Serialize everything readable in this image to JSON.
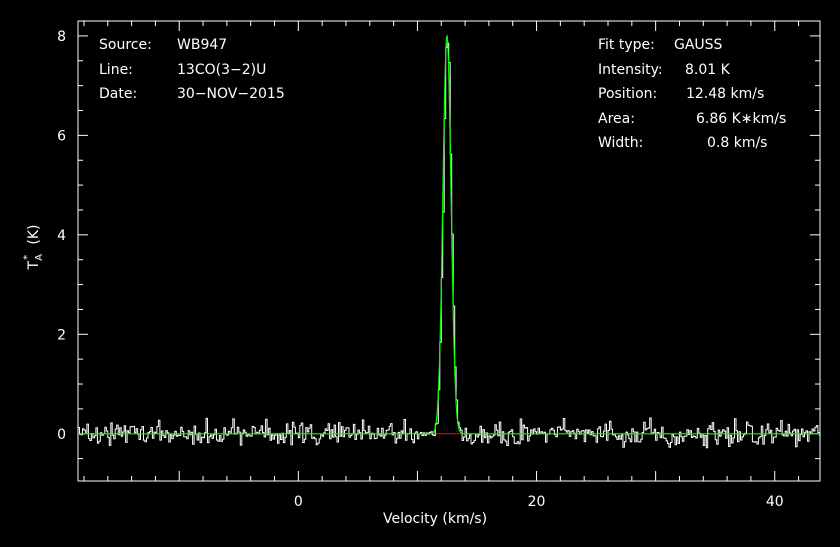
{
  "annotations_left": {
    "source_key": "Source:",
    "source_val": "WB947",
    "line_key": "Line:",
    "line_val": "13CO(3−2)U",
    "date_key": "Date:",
    "date_val": "30−NOV−2015"
  },
  "annotations_right": {
    "fit_key": "Fit type:",
    "fit_val": "GAUSS",
    "intensity_key": "Intensity:",
    "intensity_val": "8.01 K",
    "position_key": "Position:",
    "position_val": "12.48 km/s",
    "area_key": "Area:",
    "area_val": "6.86 K∗km/s",
    "width_key": "Width:",
    "width_val": "0.8 km/s"
  },
  "chart_data": {
    "type": "line",
    "xlabel": "Velocity (km/s)",
    "ylabel": "T",
    "ylabel_sub": "A",
    "ylabel_sup": "*",
    "ylabel_unit": "(K)",
    "xlim": [
      -18.5,
      43.8
    ],
    "ylim": [
      -0.95,
      8.3
    ],
    "xticks": [
      0,
      20,
      40
    ],
    "yticks": [
      0,
      2,
      4,
      6,
      8
    ],
    "spectrum": {
      "x_start": -18.5,
      "x_step": 0.125,
      "noise_amp": 0.18,
      "noise_seed": 947,
      "peak": 8.01,
      "center": 12.48,
      "fwhm": 0.8
    },
    "series": [
      {
        "name": "",
        "role": "data",
        "color": "#ffffff"
      },
      {
        "name": "",
        "role": "gauss fit",
        "color": "#00ff00"
      },
      {
        "name": "",
        "role": "baseline",
        "color": "#ff0000",
        "x": [
          10.5,
          14.5
        ],
        "y": [
          0,
          0
        ]
      }
    ]
  }
}
